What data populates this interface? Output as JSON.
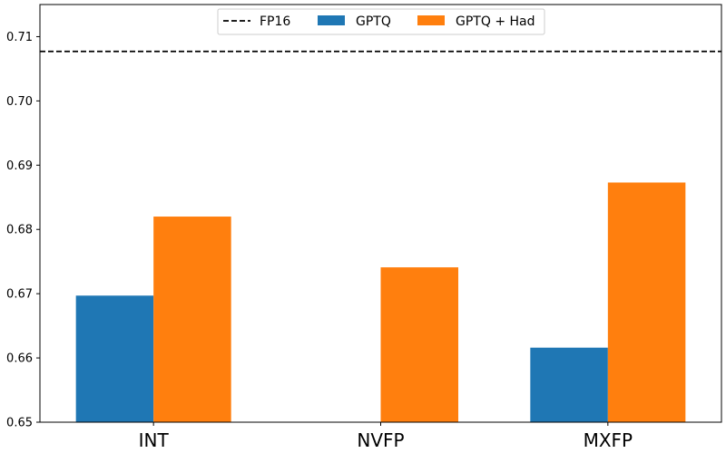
{
  "chart_data": {
    "type": "bar",
    "title": "",
    "xlabel": "",
    "ylabel": "",
    "categories": [
      "INT",
      "NVFP",
      "MXFP"
    ],
    "series": [
      {
        "name": "GPTQ",
        "color": "#1f77b4",
        "values": [
          0.6697,
          null,
          0.6616
        ]
      },
      {
        "name": "GPTQ + Had",
        "color": "#ff7f0e",
        "values": [
          0.682,
          0.6741,
          0.6873
        ]
      }
    ],
    "reference_line": {
      "name": "FP16",
      "value": 0.7077,
      "style": "dashed",
      "color": "#000000"
    },
    "ylim": [
      0.65,
      0.715
    ],
    "yticks": [
      "0.65",
      "0.66",
      "0.67",
      "0.68",
      "0.69",
      "0.70",
      "0.71"
    ],
    "grid": false,
    "legend_position": "top-center"
  }
}
